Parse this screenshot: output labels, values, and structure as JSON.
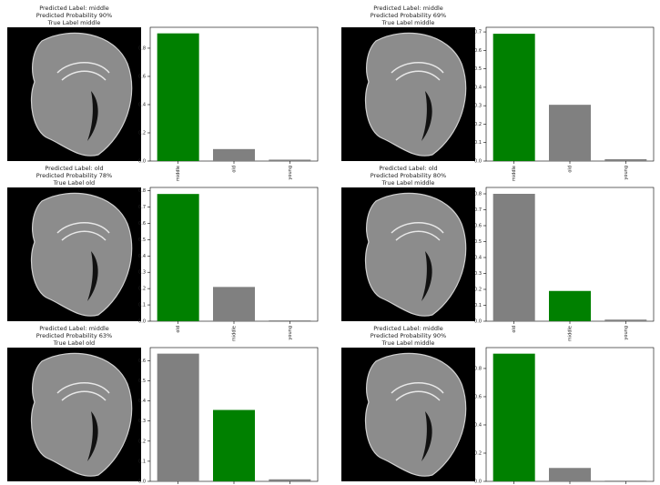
{
  "chart_data": [
    {
      "type": "bar",
      "title": [
        "Predicted Label: middle",
        "Predicted Probability 90%",
        "True Label middle"
      ],
      "title_color": "#008000",
      "categories": [
        "middle",
        "old",
        "young"
      ],
      "values": [
        0.905,
        0.085,
        0.01
      ],
      "colors": [
        "#008000",
        "#808080",
        "#808080"
      ],
      "ylim": [
        0,
        0.948
      ],
      "yticks": [
        {
          "value": 0,
          "label": "0.0"
        },
        0.2,
        0.4,
        0.6,
        0.8
      ]
    },
    {
      "type": "bar",
      "title": [
        "Predicted Label: middle",
        "Predicted Probability 69%",
        "True Label middle"
      ],
      "title_color": "#008000",
      "categories": [
        "middle",
        "old",
        "young"
      ],
      "values": [
        0.69,
        0.305,
        0.01
      ],
      "colors": [
        "#008000",
        "#808080",
        "#808080"
      ],
      "ylim": [
        0,
        0.725
      ],
      "yticks": [
        {
          "value": 0,
          "label": "0.0"
        },
        0.1,
        0.2,
        0.3,
        0.4,
        0.5,
        0.6,
        0.7
      ]
    },
    {
      "type": "bar",
      "title": [
        "Predicted Label: old",
        "Predicted Probability 78%",
        "True Label old"
      ],
      "title_color": "#008000",
      "categories": [
        "old",
        "middle",
        "young"
      ],
      "values": [
        0.78,
        0.21,
        0.005
      ],
      "colors": [
        "#008000",
        "#808080",
        "#808080"
      ],
      "ylim": [
        0,
        0.82
      ],
      "yticks": [
        {
          "value": 0,
          "label": "0.0"
        },
        0.1,
        0.2,
        0.3,
        0.4,
        0.5,
        0.6,
        0.7,
        0.8
      ]
    },
    {
      "type": "bar",
      "title": [
        "Predicted Label: old",
        "Predicted Probability 80%",
        "True Label middle"
      ],
      "title_color": "#ff0000",
      "categories": [
        "old",
        "middle",
        "young"
      ],
      "values": [
        0.8,
        0.19,
        0.01
      ],
      "colors": [
        "#808080",
        "#008000",
        "#808080"
      ],
      "ylim": [
        0,
        0.84
      ],
      "yticks": [
        {
          "value": 0,
          "label": "0.0"
        },
        0.1,
        0.2,
        0.3,
        0.4,
        0.5,
        0.6,
        0.7,
        0.8
      ]
    },
    {
      "type": "bar",
      "title": [
        "Predicted Label: middle",
        "Predicted Probability 63%",
        "True Label old"
      ],
      "title_color": "#ff0000",
      "categories": [
        null,
        null,
        null
      ],
      "values": [
        0.635,
        0.355,
        0.01
      ],
      "colors": [
        "#808080",
        "#008000",
        "#808080"
      ],
      "ylim": [
        0,
        0.665
      ],
      "yticks": [
        {
          "value": 0,
          "label": "0.0"
        },
        0.1,
        0.2,
        0.3,
        0.4,
        0.5,
        0.6
      ]
    },
    {
      "type": "bar",
      "title": [
        "Predicted Label: middle",
        "Predicted Probability 90%",
        "True Label middle"
      ],
      "title_color": "#008000",
      "categories": [
        null,
        null,
        null
      ],
      "values": [
        0.905,
        0.095,
        0.005
      ],
      "colors": [
        "#008000",
        "#808080",
        "#808080"
      ],
      "ylim": [
        0,
        0.948
      ],
      "yticks": [
        {
          "value": 0,
          "label": "0.0"
        },
        0.2,
        0.4,
        0.6,
        0.8
      ]
    }
  ]
}
